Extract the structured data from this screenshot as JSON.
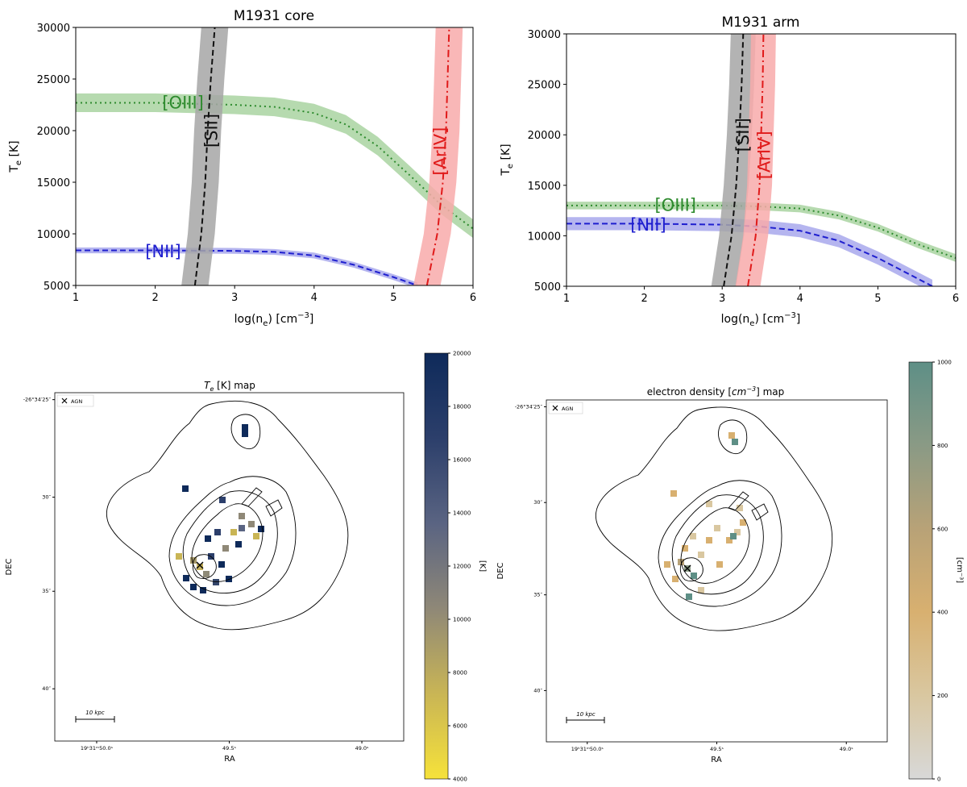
{
  "chart_data": [
    {
      "id": "core",
      "type": "line",
      "title": "M1931 core",
      "xlabel": "log(n",
      "xlabel_sub": "e",
      "xlabel_unit": ") [cm",
      "xlabel_sup": "−3",
      "xlabel_end": "]",
      "ylabel": "T",
      "ylabel_sub": "e",
      "ylabel_unit": " [K]",
      "xlim": [
        1,
        6
      ],
      "ylim": [
        5000,
        30000
      ],
      "xticks": [
        "1",
        "2",
        "3",
        "4",
        "5",
        "6"
      ],
      "yticks": [
        "5000",
        "10000",
        "15000",
        "20000",
        "25000",
        "30000"
      ],
      "series": [
        {
          "name": "[OIII]",
          "color": "#2e8b2e",
          "band_color": "#a9d3a1",
          "style": "dotted",
          "x": [
            1.0,
            2.0,
            3.0,
            3.5,
            4.0,
            4.4,
            4.8,
            5.2,
            5.6,
            6.0
          ],
          "y": [
            22700,
            22700,
            22500,
            22300,
            21700,
            20600,
            18500,
            15700,
            12800,
            10500
          ],
          "band": 900,
          "label_at": [
            2.35,
            22600
          ]
        },
        {
          "name": "[NII]",
          "color": "#1f1fcf",
          "band_color": "#a8a8ec",
          "style": "dashed",
          "x": [
            1.0,
            2.0,
            3.0,
            3.5,
            4.0,
            4.5,
            5.0,
            5.3
          ],
          "y": [
            8400,
            8400,
            8350,
            8250,
            7900,
            7000,
            5800,
            5000
          ],
          "band": 280,
          "label_at": [
            2.1,
            8200
          ]
        },
        {
          "name": "[SII]",
          "color": "#111111",
          "band_color": "#a6a6a6",
          "style": "dashed",
          "vertical": true,
          "x": [
            2.5,
            2.58,
            2.63,
            2.66,
            2.7,
            2.75
          ],
          "y": [
            5000,
            10000,
            15000,
            20000,
            25000,
            30000
          ],
          "band": 0.17,
          "label_at": [
            2.72,
            20000
          ]
        },
        {
          "name": "[ArIV]",
          "color": "#e01a1a",
          "band_color": "#f8aaaa",
          "style": "dashdot",
          "vertical": true,
          "x": [
            5.42,
            5.55,
            5.62,
            5.66,
            5.68,
            5.7
          ],
          "y": [
            5000,
            10000,
            15000,
            20000,
            25000,
            30000
          ],
          "band": 0.17,
          "label_at": [
            5.6,
            18000
          ]
        }
      ]
    },
    {
      "id": "arm",
      "type": "line",
      "title": "M1931 arm",
      "xlabel": "log(n",
      "xlabel_sub": "e",
      "xlabel_unit": ") [cm",
      "xlabel_sup": "−3",
      "xlabel_end": "]",
      "ylabel": "T",
      "ylabel_sub": "e",
      "ylabel_unit": " [K]",
      "xlim": [
        1,
        6
      ],
      "ylim": [
        5000,
        30000
      ],
      "xticks": [
        "1",
        "2",
        "3",
        "4",
        "5",
        "6"
      ],
      "yticks": [
        "5000",
        "10000",
        "15000",
        "20000",
        "25000",
        "30000"
      ],
      "series": [
        {
          "name": "[OIII]",
          "color": "#2e8b2e",
          "band_color": "#a9d3a1",
          "style": "dotted",
          "x": [
            1.0,
            2.0,
            3.0,
            3.5,
            4.0,
            4.5,
            5.0,
            5.5,
            6.0
          ],
          "y": [
            13000,
            13000,
            13000,
            12900,
            12700,
            12000,
            10800,
            9200,
            7800
          ],
          "band": 380,
          "label_at": [
            2.4,
            12950
          ]
        },
        {
          "name": "[NII]",
          "color": "#1f1fcf",
          "band_color": "#a8a8ec",
          "style": "dashed",
          "x": [
            1.0,
            2.0,
            3.0,
            3.5,
            4.0,
            4.5,
            5.0,
            5.5,
            5.7
          ],
          "y": [
            11200,
            11200,
            11100,
            10900,
            10500,
            9500,
            7800,
            5800,
            5000
          ],
          "band": 650,
          "label_at": [
            2.05,
            11000
          ]
        },
        {
          "name": "[SII]",
          "color": "#111111",
          "band_color": "#a6a6a6",
          "style": "dashed",
          "vertical": true,
          "x": [
            3.02,
            3.12,
            3.18,
            3.22,
            3.25,
            3.27
          ],
          "y": [
            5000,
            10000,
            15000,
            20000,
            25000,
            30000
          ],
          "band": 0.16,
          "label_at": [
            3.28,
            20000
          ]
        },
        {
          "name": "[ArIV]",
          "color": "#e01a1a",
          "band_color": "#f8aaaa",
          "style": "dashdot",
          "vertical": true,
          "x": [
            3.33,
            3.43,
            3.48,
            3.5,
            3.52,
            3.53
          ],
          "y": [
            5000,
            10000,
            15000,
            20000,
            25000,
            30000
          ],
          "band": 0.16,
          "label_at": [
            3.55,
            18000
          ]
        }
      ]
    },
    {
      "id": "temap",
      "type": "heatmap",
      "title_main": "T",
      "title_sub": "e",
      "title_rest": " [K] map",
      "xlabel": "RA",
      "ylabel": "DEC",
      "xticks": [
        {
          "text": "19ʰ31ᵐ50.0ˢ",
          "v": 0.12
        },
        {
          "text": "49.5ˢ",
          "v": 0.5
        },
        {
          "text": "49.0ˢ",
          "v": 0.88
        }
      ],
      "yticks": [
        {
          "text": "-26°34′25″",
          "v": 0.02
        },
        {
          "text": "30″",
          "v": 0.3
        },
        {
          "text": "35″",
          "v": 0.57
        },
        {
          "text": "40″",
          "v": 0.85
        }
      ],
      "legend": "AGN",
      "scalebar": "10 kpc",
      "colorbar": {
        "label": "[K]",
        "min": 4000,
        "max": 20000,
        "ticks": [
          "4000",
          "6000",
          "8000",
          "10000",
          "12000",
          "14000",
          "16000",
          "18000",
          "20000"
        ],
        "colors": [
          "#f6e23a",
          "#c9b555",
          "#8f8877",
          "#5a6482",
          "#2c3f6b",
          "#0e2a5a"
        ]
      }
    },
    {
      "id": "nemap",
      "type": "heatmap",
      "title_main": "electron density [",
      "title_sub": "cm",
      "title_sup": "−3",
      "title_rest": "] map",
      "xlabel": "RA",
      "ylabel": "DEC",
      "xticks": [
        {
          "text": "19ʰ31ᵐ50.0ˢ",
          "v": 0.12
        },
        {
          "text": "49.5ˢ",
          "v": 0.5
        },
        {
          "text": "49.0ˢ",
          "v": 0.88
        }
      ],
      "yticks": [
        {
          "text": "-26°34′25″",
          "v": 0.02
        },
        {
          "text": "30″",
          "v": 0.3
        },
        {
          "text": "35″",
          "v": 0.57
        },
        {
          "text": "40″",
          "v": 0.85
        }
      ],
      "legend": "AGN",
      "scalebar": "10 kpc",
      "colorbar": {
        "label": "[cm⁻³]",
        "min": 0,
        "max": 1000,
        "ticks": [
          "0",
          "200",
          "400",
          "600",
          "800",
          "1000"
        ],
        "colors": [
          "#d8d8d8",
          "#d9c7a0",
          "#d8b070",
          "#b8a277",
          "#8a9a85",
          "#5e8f86"
        ]
      }
    }
  ]
}
